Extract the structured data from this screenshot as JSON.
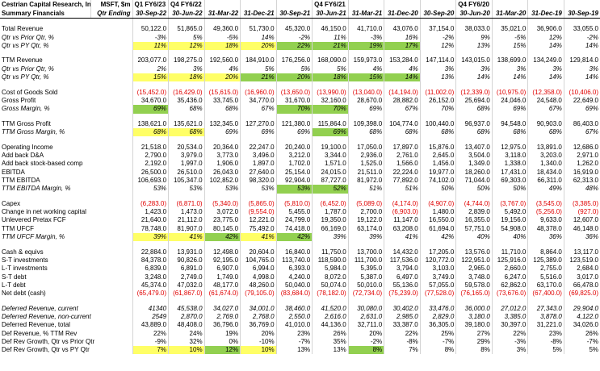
{
  "header": {
    "company": "Cestrian Capital Research, Inc",
    "subtitle": "Summary Financials",
    "ticker": "MSFT, $m",
    "period_caption": "Qtr Ending",
    "fiscal_labels": [
      "Q1 FY6/23",
      "Q4 FY6/22",
      null,
      null,
      null,
      "Q4 FY6/21",
      null,
      null,
      null,
      "Q4 FY6/20",
      null,
      null,
      null
    ],
    "periods": [
      "30-Sep-22",
      "30-Jun-22",
      "31-Mar-22",
      "31-Dec-21",
      "30-Sep-21",
      "30-Jun-21",
      "31-Mar-21",
      "31-Dec-20",
      "30-Sep-20",
      "30-Jun-20",
      "31-Mar-20",
      "31-Dec-19",
      "30-Sep-19"
    ]
  },
  "sections": [
    [
      {
        "label": "Total Revenue",
        "values": [
          "50,122.0",
          "51,865.0",
          "49,360.0",
          "51,730.0",
          "45,320.0",
          "46,150.0",
          "41,710.0",
          "43,076.0",
          "37,154.0",
          "38,033.0",
          "35,021.0",
          "36,906.0",
          "33,055.0"
        ]
      },
      {
        "label": "Qtr vs Prior Qtr, %",
        "italic": true,
        "values": [
          "-3%",
          "5%",
          "-5%",
          "14%",
          "-2%",
          "11%",
          "-3%",
          "16%",
          "-2%",
          "9%",
          "-5%",
          "12%",
          "-2%"
        ]
      },
      {
        "label": "Qtr vs PY Qtr, %",
        "italic": true,
        "values": [
          "11%",
          "12%",
          "18%",
          "20%",
          "22%",
          "21%",
          "19%",
          "17%",
          "12%",
          "13%",
          "15%",
          "14%",
          "14%"
        ],
        "highlight": [
          "#ffff66",
          "#ffff66",
          "#ffff66",
          "#ffff66",
          "#92d050",
          "#92d050",
          "#92d050",
          "#92d050",
          null,
          null,
          null,
          null,
          null
        ]
      }
    ],
    [
      {
        "label": "TTM Revenue",
        "values": [
          "203,077.0",
          "198,275.0",
          "192,560.0",
          "184,910.0",
          "176,256.0",
          "168,090.0",
          "159,973.0",
          "153,284.0",
          "147,114.0",
          "143,015.0",
          "138,699.0",
          "134,249.0",
          "129,814.0"
        ]
      },
      {
        "label": "Qtr vs Prior Qtr, %",
        "italic": true,
        "values": [
          "2%",
          "3%",
          "4%",
          "5%",
          "5%",
          "5%",
          "4%",
          "4%",
          "3%",
          "3%",
          "3%",
          "3%",
          "3%"
        ]
      },
      {
        "label": "Qtr vs PY Qtr, %",
        "italic": true,
        "values": [
          "15%",
          "18%",
          "20%",
          "21%",
          "20%",
          "18%",
          "15%",
          "14%",
          "13%",
          "14%",
          "14%",
          "14%",
          "14%"
        ],
        "highlight": [
          "#ffff66",
          "#ffff66",
          "#ffff66",
          "#92d050",
          "#92d050",
          "#92d050",
          "#92d050",
          "#92d050",
          null,
          null,
          null,
          null,
          null
        ]
      }
    ],
    [
      {
        "label": "Cost of Goods Sold",
        "values": [
          "(15,452.0)",
          "(16,429.0)",
          "(15,615.0)",
          "(16,960.0)",
          "(13,650.0)",
          "(13,990.0)",
          "(13,040.0)",
          "(14,194.0)",
          "(11,002.0)",
          "(12,339.0)",
          "(10,975.0)",
          "(12,358.0)",
          "(10,406.0)"
        ]
      },
      {
        "label": "Gross Profit",
        "values": [
          "34,670.0",
          "35,436.0",
          "33,745.0",
          "34,770.0",
          "31,670.0",
          "32,160.0",
          "28,670.0",
          "28,882.0",
          "26,152.0",
          "25,694.0",
          "24,046.0",
          "24,548.0",
          "22,649.0"
        ]
      },
      {
        "label": "Gross Margin, %",
        "italic": true,
        "values": [
          "69%",
          "68%",
          "68%",
          "67%",
          "70%",
          "70%",
          "69%",
          "67%",
          "70%",
          "68%",
          "69%",
          "67%",
          "69%"
        ],
        "highlight": [
          "#92d050",
          null,
          null,
          null,
          "#92d050",
          "#92d050",
          null,
          null,
          null,
          null,
          null,
          null,
          null
        ]
      }
    ],
    [
      {
        "label": "TTM Gross Profit",
        "values": [
          "138,621.0",
          "135,621.0",
          "132,345.0",
          "127,270.0",
          "121,380.0",
          "115,864.0",
          "109,398.0",
          "104,774.0",
          "100,440.0",
          "96,937.0",
          "94,548.0",
          "90,903.0",
          "86,403.0"
        ]
      },
      {
        "label": "TTM Gross Margin, %",
        "italic": true,
        "values": [
          "68%",
          "68%",
          "69%",
          "69%",
          "69%",
          "69%",
          "68%",
          "68%",
          "68%",
          "68%",
          "68%",
          "68%",
          "67%"
        ],
        "highlight": [
          "#ffff66",
          "#ffff66",
          null,
          null,
          null,
          "#92d050",
          null,
          null,
          null,
          null,
          null,
          null,
          null
        ]
      }
    ],
    [
      {
        "label": "Operating Income",
        "values": [
          "21,518.0",
          "20,534.0",
          "20,364.0",
          "22,247.0",
          "20,240.0",
          "19,100.0",
          "17,050.0",
          "17,897.0",
          "15,876.0",
          "13,407.0",
          "12,975.0",
          "13,891.0",
          "12,686.0"
        ]
      },
      {
        "label": "Add back D&A",
        "values": [
          "2,790.0",
          "3,979.0",
          "3,773.0",
          "3,496.0",
          "3,212.0",
          "3,344.0",
          "2,936.0",
          "2,761.0",
          "2,645.0",
          "3,504.0",
          "3,118.0",
          "3,203.0",
          "2,971.0"
        ]
      },
      {
        "label": "Add back stock-based comp",
        "values": [
          "2,192.0",
          "1,997.0",
          "1,906.0",
          "1,897.0",
          "1,702.0",
          "1,571.0",
          "1,525.0",
          "1,566.0",
          "1,456.0",
          "1,349.0",
          "1,338.0",
          "1,340.0",
          "1,262.0"
        ]
      },
      {
        "label": "EBITDA",
        "values": [
          "26,500.0",
          "26,510.0",
          "26,043.0",
          "27,640.0",
          "25,154.0",
          "24,015.0",
          "21,511.0",
          "22,224.0",
          "19,977.0",
          "18,260.0",
          "17,431.0",
          "18,434.0",
          "16,919.0"
        ]
      },
      {
        "label": "TTM EBITDA",
        "values": [
          "106,693.0",
          "105,347.0",
          "102,852.0",
          "98,320.0",
          "92,904.0",
          "87,727.0",
          "81,972.0",
          "77,892.0",
          "74,102.0",
          "71,044.0",
          "69,303.0",
          "66,311.0",
          "62,313.0"
        ]
      },
      {
        "label": "TTM EBITDA Margin, %",
        "italic": true,
        "values": [
          "53%",
          "53%",
          "53%",
          "53%",
          "53%",
          "52%",
          "51%",
          "51%",
          "50%",
          "50%",
          "50%",
          "49%",
          "48%"
        ],
        "highlight": [
          null,
          null,
          null,
          null,
          "#92d050",
          "#92d050",
          null,
          null,
          null,
          null,
          null,
          null,
          null
        ]
      }
    ],
    [
      {
        "label": "Capex",
        "values": [
          "(6,283.0)",
          "(6,871.0)",
          "(5,340.0)",
          "(5,865.0)",
          "(5,810.0)",
          "(6,452.0)",
          "(5,089.0)",
          "(4,174.0)",
          "(4,907.0)",
          "(4,744.0)",
          "(3,767.0)",
          "(3,545.0)",
          "(3,385.0)"
        ]
      },
      {
        "label": "Change in net working capital",
        "values": [
          "1,423.0",
          "1,473.0",
          "3,072.0",
          "(9,554.0)",
          "5,455.0",
          "1,787.0",
          "2,700.0",
          "(6,903.0)",
          "1,480.0",
          "2,839.0",
          "5,492.0",
          "(5,256.0)",
          "(927.0)"
        ]
      },
      {
        "label": "Unlevered Pretax FCF",
        "values": [
          "21,640.0",
          "21,112.0",
          "23,775.0",
          "12,221.0",
          "24,799.0",
          "19,350.0",
          "19,122.0",
          "11,147.0",
          "16,550.0",
          "16,355.0",
          "19,156.0",
          "9,633.0",
          "12,607.0"
        ]
      },
      {
        "label": "TTM UFCF",
        "values": [
          "78,748.0",
          "81,907.0",
          "80,145.0",
          "75,492.0",
          "74,418.0",
          "66,169.0",
          "63,174.0",
          "63,208.0",
          "61,694.0",
          "57,751.0",
          "54,908.0",
          "48,378.0",
          "46,148.0"
        ]
      },
      {
        "label": "TTM UFCF Margin, %",
        "italic": true,
        "values": [
          "39%",
          "41%",
          "42%",
          "41%",
          "42%",
          "39%",
          "39%",
          "41%",
          "42%",
          "40%",
          "40%",
          "36%",
          "36%"
        ],
        "highlight": [
          "#ffff66",
          "#ffff66",
          "#92d050",
          "#ffff66",
          "#92d050",
          null,
          null,
          null,
          null,
          null,
          null,
          null,
          null
        ]
      }
    ],
    [
      {
        "label": "Cash & equivs",
        "values": [
          "22,884.0",
          "13,931.0",
          "12,498.0",
          "20,604.0",
          "16,840.0",
          "11,750.0",
          "13,700.0",
          "14,432.0",
          "17,205.0",
          "13,576.0",
          "11,710.0",
          "8,864.0",
          "13,117.0"
        ]
      },
      {
        "label": "S-T investments",
        "values": [
          "84,378.0",
          "90,826.0",
          "92,195.0",
          "104,765.0",
          "113,740.0",
          "118,590.0",
          "111,700.0",
          "117,536.0",
          "120,772.0",
          "122,951.0",
          "125,916.0",
          "125,389.0",
          "123,519.0"
        ]
      },
      {
        "label": "L-T investments",
        "values": [
          "6,839.0",
          "6,891.0",
          "6,907.0",
          "6,994.0",
          "6,393.0",
          "5,984.0",
          "5,395.0",
          "3,794.0",
          "3,103.0",
          "2,965.0",
          "2,660.0",
          "2,755.0",
          "2,684.0"
        ]
      },
      {
        "label": "S-T debt",
        "values": [
          "3,248.0",
          "2,749.0",
          "1,749.0",
          "4,998.0",
          "4,240.0",
          "8,072.0",
          "5,387.0",
          "6,497.0",
          "3,749.0",
          "3,748.0",
          "6,247.0",
          "5,516.0",
          "3,017.0"
        ]
      },
      {
        "label": "L-T debt",
        "values": [
          "45,374.0",
          "47,032.0",
          "48,177.0",
          "48,260.0",
          "50,040.0",
          "50,074.0",
          "50,010.0",
          "55,136.0",
          "57,055.0",
          "59,578.0",
          "62,862.0",
          "63,170.0",
          "66,478.0"
        ]
      },
      {
        "label": "Net debt (cash)",
        "values": [
          "(65,479.0)",
          "(61,867.0)",
          "(61,674.0)",
          "(79,105.0)",
          "(83,684.0)",
          "(78,182.0)",
          "(72,734.0)",
          "(75,239.0)",
          "(77,528.0)",
          "(76,165.0)",
          "(73,676.0)",
          "(67,400.0)",
          "(69,825.0)"
        ]
      }
    ],
    [
      {
        "label": "Deferred Revenue, current",
        "italic": true,
        "values": [
          "41340",
          "45,538.0",
          "34,027.0",
          "34,001.0",
          "38,460.0",
          "41,520.0",
          "30,080.0",
          "30,402.0",
          "33,476.0",
          "36,000.0",
          "27,012.0",
          "27,343.0",
          "29,904.0"
        ]
      },
      {
        "label": "Deferred Revenue, non-current",
        "italic": true,
        "values": [
          "2549",
          "2,870.0",
          "2,769.0",
          "2,768.0",
          "2,550.0",
          "2,616.0",
          "2,631.0",
          "2,985.0",
          "2,829.0",
          "3,180.0",
          "3,385.0",
          "3,878.0",
          "4,122.0"
        ]
      },
      {
        "label": "Deferred Revenue, total",
        "values": [
          "43,889.0",
          "48,408.0",
          "36,796.0",
          "36,769.0",
          "41,010.0",
          "44,136.0",
          "32,711.0",
          "33,387.0",
          "36,305.0",
          "39,180.0",
          "30,397.0",
          "31,221.0",
          "34,026.0"
        ]
      },
      {
        "label": "Def Revenue, % TTM Rev",
        "values": [
          "22%",
          "24%",
          "19%",
          "20%",
          "23%",
          "26%",
          "20%",
          "22%",
          "25%",
          "27%",
          "22%",
          "23%",
          "26%"
        ]
      },
      {
        "label": "Def Rev Growth, Qtr vs Prior Qtr",
        "values": [
          "-9%",
          "32%",
          "0%",
          "-10%",
          "-7%",
          "35%",
          "-2%",
          "-8%",
          "-7%",
          "29%",
          "-3%",
          "-8%",
          "-7%"
        ]
      },
      {
        "label": "Def Rev Growth, Qtr vs PY Qtr",
        "values": [
          "7%",
          "10%",
          "12%",
          "10%",
          "13%",
          "13%",
          "8%",
          "7%",
          "8%",
          "8%",
          "3%",
          "5%",
          "5%"
        ],
        "highlight": [
          "#ffff66",
          "#ffff66",
          "#92d050",
          "#ffff66",
          null,
          null,
          "#92d050",
          null,
          null,
          null,
          null,
          null,
          null
        ]
      }
    ]
  ]
}
